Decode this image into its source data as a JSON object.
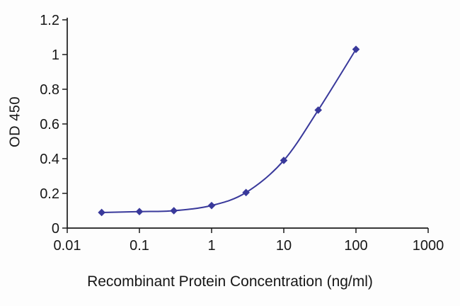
{
  "chart_data": {
    "type": "line",
    "title": "",
    "xlabel": "Recombinant Protein Concentration (ng/ml)",
    "ylabel": "OD 450",
    "x_scale": "log",
    "xlim": [
      0.01,
      1000
    ],
    "ylim": [
      0,
      1.2
    ],
    "x_ticks": [
      0.01,
      0.1,
      1,
      10,
      100,
      1000
    ],
    "x_tick_labels": [
      "0.01",
      "0.1",
      "1",
      "10",
      "100",
      "1000"
    ],
    "y_ticks": [
      0,
      0.2,
      0.4,
      0.6,
      0.8,
      1,
      1.2
    ],
    "y_tick_labels": [
      "0",
      "0.2",
      "0.4",
      "0.6",
      "0.8",
      "1",
      "1.2"
    ],
    "grid": false,
    "legend": false,
    "series": [
      {
        "name": "OD 450",
        "color": "#39399b",
        "marker": "diamond",
        "x": [
          0.03,
          0.1,
          0.3,
          1,
          3,
          10,
          30,
          100
        ],
        "y": [
          0.09,
          0.095,
          0.1,
          0.13,
          0.205,
          0.39,
          0.68,
          1.03
        ]
      }
    ]
  },
  "colors": {
    "background": "#fdfdfd",
    "axis": "#1c1c1c",
    "text": "#161616"
  }
}
